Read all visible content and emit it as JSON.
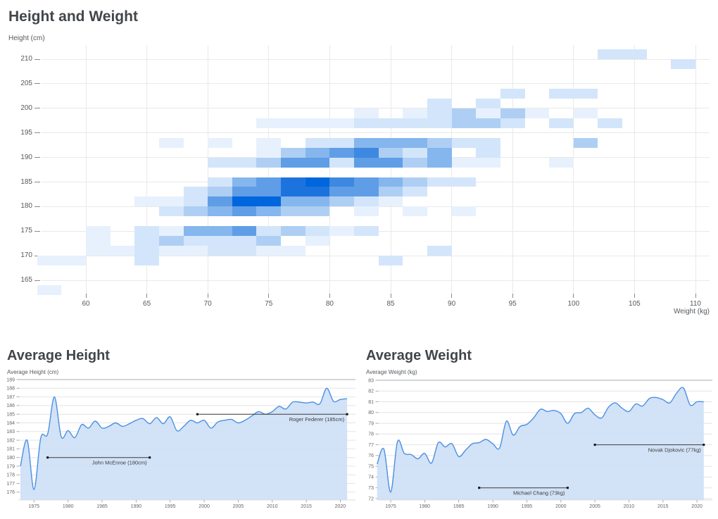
{
  "chart_data": [
    {
      "type": "heatmap",
      "title": "Height and Weight",
      "xlabel": "Weight (kg)",
      "ylabel": "Height (cm)",
      "x_ticks": [
        60,
        65,
        70,
        75,
        80,
        85,
        90,
        95,
        100,
        105,
        110
      ],
      "y_ticks": [
        165,
        170,
        175,
        180,
        185,
        190,
        195,
        200,
        205,
        210
      ],
      "x_range": [
        56,
        112
      ],
      "y_range": [
        162,
        212
      ],
      "bin_kg": 2,
      "bin_cm": 2,
      "palette": [
        "#e7f1fd",
        "#d3e5fa",
        "#aecff3",
        "#85b6ed",
        "#5f9ee6",
        "#3d88e0",
        "#1d73dd",
        "#0066dd"
      ],
      "cells": [
        [
          102,
          210,
          2
        ],
        [
          104,
          210,
          2
        ],
        [
          108,
          208,
          2
        ],
        [
          94,
          202,
          2
        ],
        [
          98,
          202,
          2
        ],
        [
          100,
          202,
          2
        ],
        [
          88,
          200,
          2
        ],
        [
          92,
          200,
          2
        ],
        [
          82,
          198,
          1
        ],
        [
          86,
          198,
          1
        ],
        [
          88,
          198,
          2
        ],
        [
          90,
          198,
          3
        ],
        [
          92,
          198,
          1
        ],
        [
          94,
          198,
          3
        ],
        [
          96,
          198,
          1
        ],
        [
          100,
          198,
          1
        ],
        [
          74,
          196,
          1
        ],
        [
          76,
          196,
          1
        ],
        [
          78,
          196,
          1
        ],
        [
          80,
          196,
          1
        ],
        [
          82,
          196,
          2
        ],
        [
          84,
          196,
          2
        ],
        [
          86,
          196,
          2
        ],
        [
          88,
          196,
          2
        ],
        [
          90,
          196,
          3
        ],
        [
          92,
          196,
          3
        ],
        [
          94,
          196,
          2
        ],
        [
          98,
          196,
          2
        ],
        [
          102,
          196,
          2
        ],
        [
          66,
          192,
          1
        ],
        [
          70,
          192,
          1
        ],
        [
          74,
          192,
          1
        ],
        [
          78,
          192,
          2
        ],
        [
          80,
          192,
          2
        ],
        [
          82,
          192,
          4
        ],
        [
          84,
          192,
          4
        ],
        [
          86,
          192,
          4
        ],
        [
          88,
          192,
          3
        ],
        [
          90,
          192,
          2
        ],
        [
          92,
          192,
          2
        ],
        [
          100,
          192,
          3
        ],
        [
          74,
          190,
          1
        ],
        [
          76,
          190,
          3
        ],
        [
          78,
          190,
          4
        ],
        [
          80,
          190,
          5
        ],
        [
          82,
          190,
          6
        ],
        [
          84,
          190,
          3
        ],
        [
          86,
          190,
          2
        ],
        [
          88,
          190,
          4
        ],
        [
          92,
          190,
          2
        ],
        [
          70,
          188,
          2
        ],
        [
          72,
          188,
          2
        ],
        [
          74,
          188,
          3
        ],
        [
          76,
          188,
          5
        ],
        [
          78,
          188,
          5
        ],
        [
          80,
          188,
          2
        ],
        [
          82,
          188,
          5
        ],
        [
          84,
          188,
          5
        ],
        [
          86,
          188,
          3
        ],
        [
          88,
          188,
          4
        ],
        [
          90,
          188,
          1
        ],
        [
          92,
          188,
          1
        ],
        [
          98,
          188,
          1
        ],
        [
          70,
          184,
          2
        ],
        [
          72,
          184,
          4
        ],
        [
          74,
          184,
          5
        ],
        [
          76,
          184,
          7
        ],
        [
          78,
          184,
          8
        ],
        [
          80,
          184,
          6
        ],
        [
          82,
          184,
          5
        ],
        [
          84,
          184,
          4
        ],
        [
          86,
          184,
          3
        ],
        [
          88,
          184,
          2
        ],
        [
          90,
          184,
          2
        ],
        [
          68,
          182,
          2
        ],
        [
          70,
          182,
          3
        ],
        [
          72,
          182,
          5
        ],
        [
          74,
          182,
          5
        ],
        [
          76,
          182,
          7
        ],
        [
          78,
          182,
          7
        ],
        [
          80,
          182,
          5
        ],
        [
          82,
          182,
          5
        ],
        [
          84,
          182,
          3
        ],
        [
          86,
          182,
          2
        ],
        [
          64,
          180,
          1
        ],
        [
          66,
          180,
          1
        ],
        [
          68,
          180,
          2
        ],
        [
          70,
          180,
          5
        ],
        [
          72,
          180,
          8
        ],
        [
          74,
          180,
          8
        ],
        [
          76,
          180,
          4
        ],
        [
          78,
          180,
          4
        ],
        [
          80,
          180,
          3
        ],
        [
          82,
          180,
          2
        ],
        [
          84,
          180,
          1
        ],
        [
          66,
          178,
          2
        ],
        [
          68,
          178,
          3
        ],
        [
          70,
          178,
          4
        ],
        [
          72,
          178,
          5
        ],
        [
          74,
          178,
          4
        ],
        [
          76,
          178,
          3
        ],
        [
          78,
          178,
          3
        ],
        [
          82,
          178,
          1
        ],
        [
          86,
          178,
          1
        ],
        [
          90,
          178,
          1
        ],
        [
          60,
          174,
          1
        ],
        [
          64,
          174,
          2
        ],
        [
          66,
          174,
          1
        ],
        [
          68,
          174,
          4
        ],
        [
          70,
          174,
          4
        ],
        [
          72,
          174,
          5
        ],
        [
          74,
          174,
          2
        ],
        [
          76,
          174,
          3
        ],
        [
          78,
          174,
          2
        ],
        [
          80,
          174,
          1
        ],
        [
          82,
          174,
          2
        ],
        [
          60,
          172,
          1
        ],
        [
          64,
          172,
          2
        ],
        [
          66,
          172,
          3
        ],
        [
          68,
          172,
          2
        ],
        [
          70,
          172,
          2
        ],
        [
          72,
          172,
          2
        ],
        [
          74,
          172,
          3
        ],
        [
          78,
          172,
          1
        ],
        [
          60,
          170,
          1
        ],
        [
          62,
          170,
          1
        ],
        [
          64,
          170,
          2
        ],
        [
          66,
          170,
          1
        ],
        [
          68,
          170,
          1
        ],
        [
          70,
          170,
          2
        ],
        [
          72,
          170,
          2
        ],
        [
          74,
          170,
          1
        ],
        [
          76,
          170,
          1
        ],
        [
          88,
          170,
          2
        ],
        [
          56,
          168,
          1
        ],
        [
          58,
          168,
          1
        ],
        [
          64,
          168,
          2
        ],
        [
          84,
          168,
          2
        ],
        [
          56,
          162,
          1
        ]
      ]
    },
    {
      "type": "area",
      "title": "Average Height",
      "ylabel": "Average Height (cm)",
      "y_ticks": [
        176,
        177,
        178,
        179,
        180,
        181,
        182,
        183,
        184,
        185,
        186,
        187,
        188,
        189
      ],
      "x_ticks": [
        1975,
        1980,
        1985,
        1990,
        1995,
        2000,
        2005,
        2010,
        2015,
        2020
      ],
      "years": [
        1973,
        1974,
        1975,
        1976,
        1977,
        1978,
        1979,
        1980,
        1981,
        1982,
        1983,
        1984,
        1985,
        1986,
        1987,
        1988,
        1989,
        1990,
        1991,
        1992,
        1993,
        1994,
        1995,
        1996,
        1997,
        1998,
        1999,
        2000,
        2001,
        2002,
        2003,
        2004,
        2005,
        2006,
        2007,
        2008,
        2009,
        2010,
        2011,
        2012,
        2013,
        2014,
        2015,
        2016,
        2017,
        2018,
        2019,
        2020,
        2021
      ],
      "values": [
        179.0,
        182.0,
        176.3,
        182.3,
        182.7,
        187.0,
        182.4,
        183.1,
        182.3,
        183.8,
        183.4,
        184.2,
        183.4,
        183.6,
        184.0,
        183.6,
        183.9,
        184.3,
        184.5,
        183.9,
        184.6,
        183.9,
        184.7,
        183.1,
        183.6,
        184.3,
        184.0,
        184.3,
        183.4,
        184.1,
        184.3,
        184.4,
        184.0,
        184.3,
        184.8,
        185.3,
        185.0,
        185.3,
        185.9,
        185.6,
        186.4,
        186.4,
        186.3,
        186.4,
        186.2,
        188.0,
        186.5,
        186.7,
        186.8
      ],
      "line_color": "#4a90e2",
      "fill_color": "#cddff6",
      "annotations": [
        {
          "label": "John McEnroe (180cm)",
          "value": 180,
          "from_year": 1977,
          "to_year": 1992
        },
        {
          "label": "Roger Federer (185cm)",
          "value": 185,
          "from_year": 1999,
          "to_year": 2021
        }
      ]
    },
    {
      "type": "area",
      "title": "Average Weight",
      "ylabel": "Average Weight (kg)",
      "y_ticks": [
        72,
        73,
        74,
        75,
        76,
        77,
        78,
        79,
        80,
        81,
        82,
        83
      ],
      "x_ticks": [
        1975,
        1980,
        1985,
        1990,
        1995,
        2000,
        2005,
        2010,
        2015,
        2020
      ],
      "years": [
        1973,
        1974,
        1975,
        1976,
        1977,
        1978,
        1979,
        1980,
        1981,
        1982,
        1983,
        1984,
        1985,
        1986,
        1987,
        1988,
        1989,
        1990,
        1991,
        1992,
        1993,
        1994,
        1995,
        1996,
        1997,
        1998,
        1999,
        2000,
        2001,
        2002,
        2003,
        2004,
        2005,
        2006,
        2007,
        2008,
        2009,
        2010,
        2011,
        2012,
        2013,
        2014,
        2015,
        2016,
        2017,
        2018,
        2019,
        2020,
        2021
      ],
      "values": [
        75.2,
        76.6,
        72.6,
        77.3,
        76.2,
        76.1,
        75.7,
        76.2,
        75.3,
        77.2,
        76.8,
        77.1,
        75.9,
        76.5,
        77.1,
        77.2,
        77.5,
        77.1,
        76.7,
        79.2,
        77.9,
        78.7,
        78.9,
        79.5,
        80.3,
        80.1,
        80.2,
        79.9,
        79.0,
        79.9,
        80.0,
        80.4,
        79.8,
        79.5,
        80.5,
        80.9,
        80.4,
        80.1,
        80.8,
        80.6,
        81.3,
        81.4,
        81.2,
        80.9,
        81.8,
        82.3,
        80.7,
        81.0,
        81.0
      ],
      "line_color": "#4a90e2",
      "fill_color": "#cddff6",
      "annotations": [
        {
          "label": "Michael Chang (73kg)",
          "value": 73,
          "from_year": 1988,
          "to_year": 2001
        },
        {
          "label": "Novak Djokovic (77kg)",
          "value": 77,
          "from_year": 2005,
          "to_year": 2021
        }
      ]
    }
  ]
}
